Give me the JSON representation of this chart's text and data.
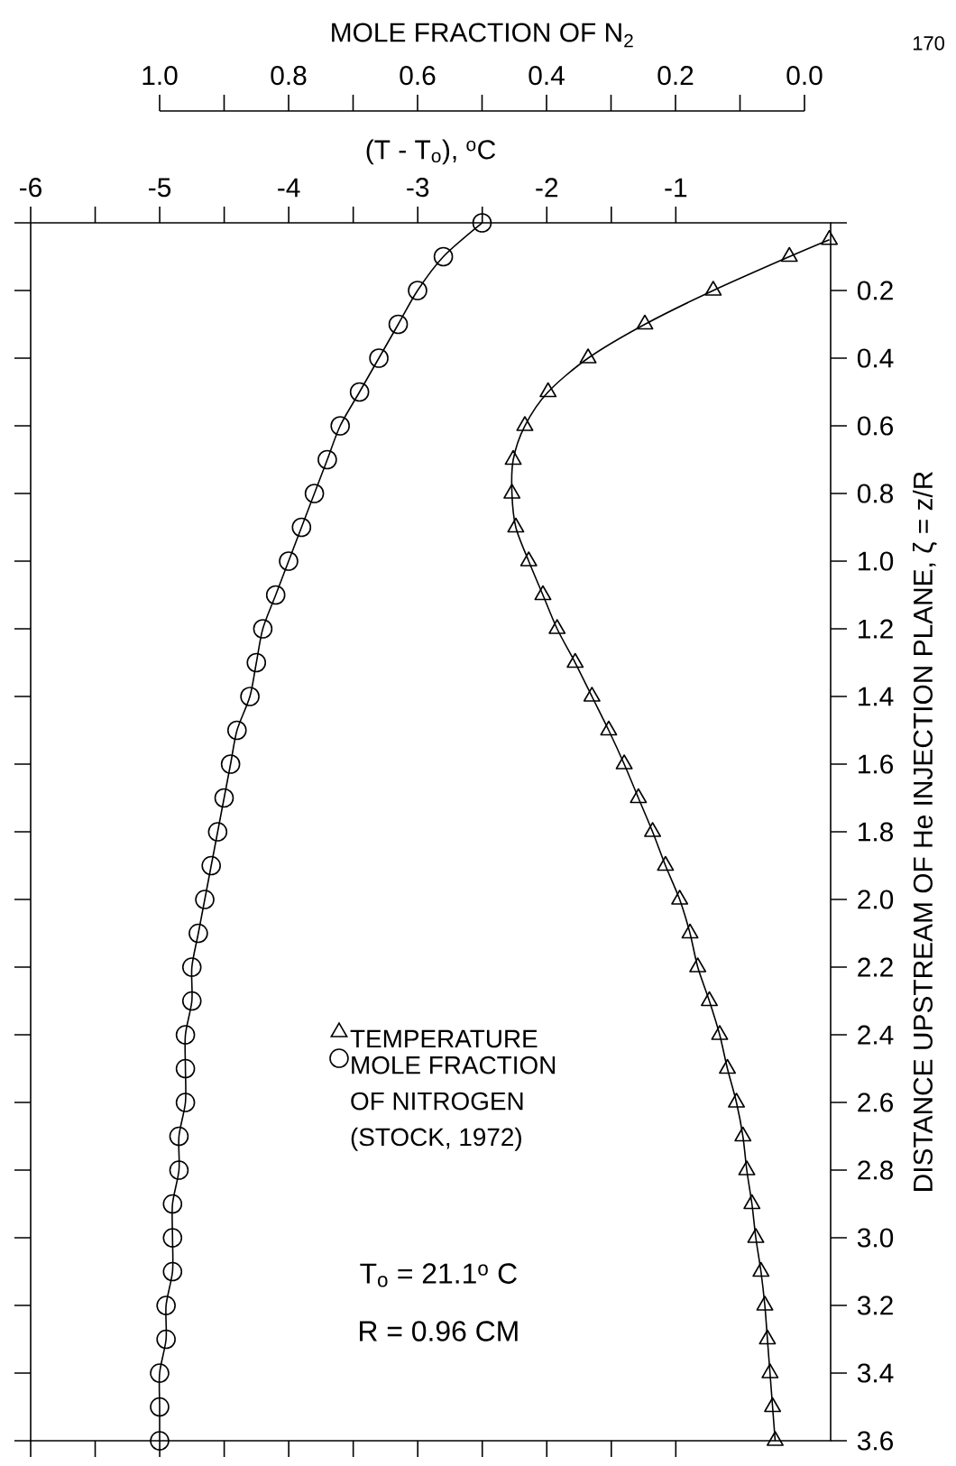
{
  "chart_data": {
    "type": "line",
    "xlabel": "(T - T$_{o}$), $^{o}$C",
    "x2label": "MOLE FRACTION OF N$_{2}$",
    "ylabel": "DISTANCE UPSTREAM OF He INJECTION PLANE, ζ = z/R",
    "xlim": [
      -6,
      0.2
    ],
    "xticks": [
      -6,
      -5,
      -4,
      -3,
      -2,
      -1
    ],
    "x2lim": [
      1.0,
      0.0
    ],
    "x2ticks": [
      {
        "value": 1.0,
        "label": "1.0"
      },
      {
        "value": 0.8,
        "label": "0.8"
      },
      {
        "value": 0.6,
        "label": "0.6"
      },
      {
        "value": 0.4,
        "label": "0.4"
      },
      {
        "value": 0.2,
        "label": "0.2"
      },
      {
        "value": 0.0,
        "label": "0.0"
      }
    ],
    "ylim": [
      3.6,
      0
    ],
    "yticks": [
      {
        "value": 0,
        "label": null
      },
      0.2,
      0.4,
      0.6,
      0.8,
      {
        "value": 1.0,
        "label": "1.0"
      },
      1.2,
      1.4,
      1.6,
      1.8,
      {
        "value": 2.0,
        "label": "2.0"
      },
      2.2,
      2.4,
      2.6,
      2.8,
      {
        "value": 3.0,
        "label": "3.0"
      },
      3.2,
      3.4,
      3.6
    ],
    "line_style": "solid",
    "legend": "bottom",
    "series": [
      {
        "name": "TEMPERATURE",
        "color": "#000000",
        "marker": "triangle",
        "x": [
          0.19,
          -0.12,
          -0.71,
          -1.24,
          -1.68,
          -1.99,
          -2.17,
          -2.26,
          -2.27,
          -2.24,
          -2.14,
          -2.03,
          -1.92,
          -1.78,
          -1.65,
          -1.52,
          -1.4,
          -1.29,
          -1.18,
          -1.08,
          -0.97,
          -0.89,
          -0.83,
          -0.74,
          -0.66,
          -0.6,
          -0.53,
          -0.48,
          -0.45,
          -0.41,
          -0.38,
          -0.34,
          -0.31,
          -0.29,
          -0.27,
          -0.25,
          -0.23
        ],
        "values": [
          0.05,
          0.1,
          0.2,
          0.3,
          0.4,
          0.5,
          0.6,
          0.7,
          0.8,
          0.9,
          1.0,
          1.1,
          1.2,
          1.3,
          1.4,
          1.5,
          1.6,
          1.7,
          1.8,
          1.9,
          2.0,
          2.1,
          2.2,
          2.3,
          2.4,
          2.5,
          2.6,
          2.7,
          2.8,
          2.9,
          3.0,
          3.1,
          3.2,
          3.3,
          3.4,
          3.5,
          3.6
        ]
      },
      {
        "name": "MOLE FRACTION OF NITROGEN (STOCK, 1972)",
        "color": "#000000",
        "marker": "circle",
        "axis": "x2",
        "x": [
          0.5,
          0.56,
          0.6,
          0.63,
          0.66,
          0.69,
          0.72,
          0.74,
          0.76,
          0.78,
          0.8,
          0.82,
          0.84,
          0.85,
          0.86,
          0.88,
          0.89,
          0.9,
          0.91,
          0.92,
          0.93,
          0.94,
          0.95,
          0.95,
          0.96,
          0.96,
          0.96,
          0.97,
          0.97,
          0.98,
          0.98,
          0.98,
          0.99,
          0.99,
          1.0,
          1.0,
          1.0
        ],
        "values": [
          0.0,
          0.1,
          0.2,
          0.3,
          0.4,
          0.5,
          0.6,
          0.7,
          0.8,
          0.9,
          1.0,
          1.1,
          1.2,
          1.3,
          1.4,
          1.5,
          1.6,
          1.7,
          1.8,
          1.9,
          2.0,
          2.1,
          2.2,
          2.3,
          2.4,
          2.5,
          2.6,
          2.7,
          2.8,
          2.9,
          3.0,
          3.1,
          3.2,
          3.3,
          3.4,
          3.5,
          3.6
        ]
      }
    ],
    "annotations": [
      "T$_{o}$ = 21.1$^{o}$ C",
      "R = 0.96 CM",
      "170"
    ]
  }
}
